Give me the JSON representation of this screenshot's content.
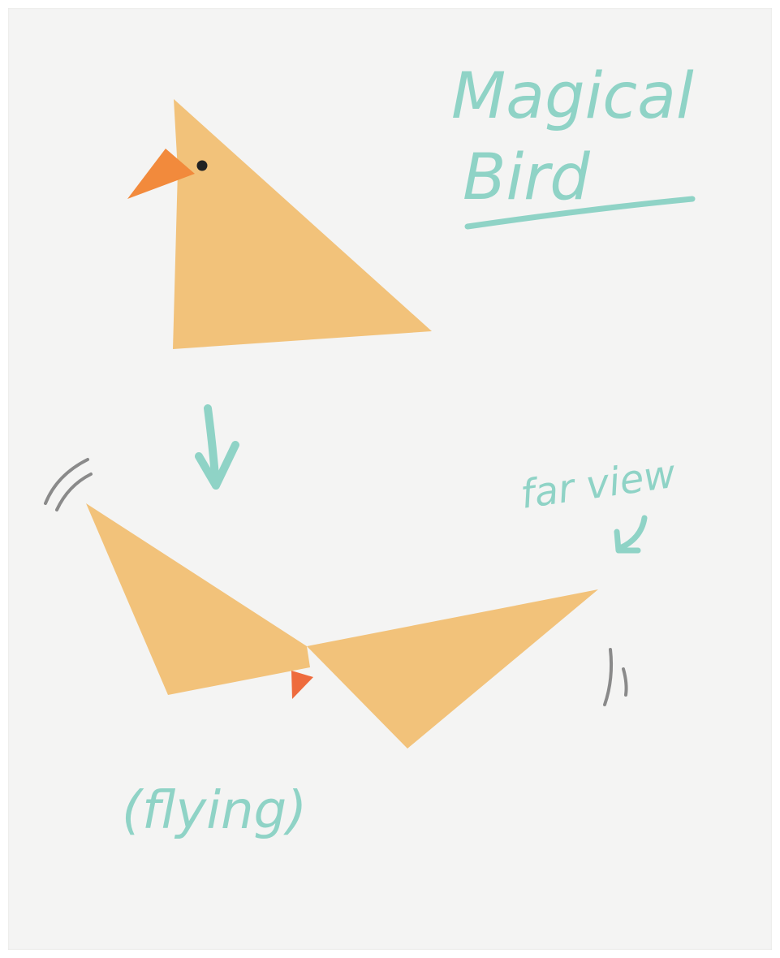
{
  "title": {
    "line1": "Magical",
    "line2": "Bird"
  },
  "labels": {
    "far_view": "far view",
    "flying": "(flying)"
  },
  "colors": {
    "paper": "#f4f4f3",
    "body": "#f2c27a",
    "beak": "#f28a3c",
    "beak_small": "#ee6b3d",
    "eye": "#222222",
    "ink": "#8fd3c6",
    "motion": "#8a8a8a"
  }
}
